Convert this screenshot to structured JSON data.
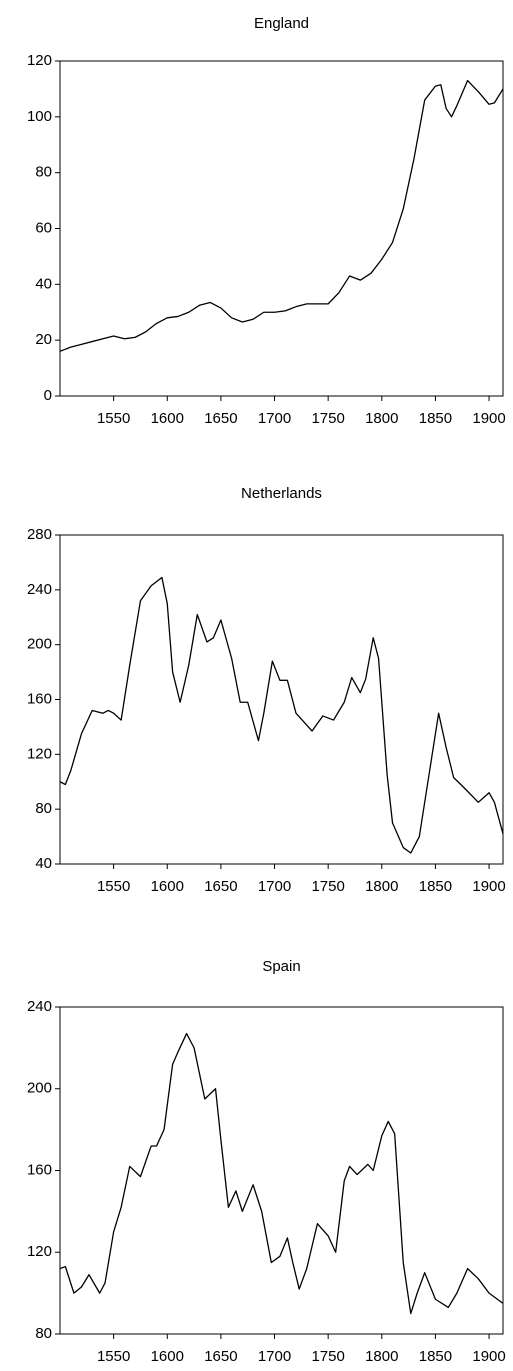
{
  "chart_data": [
    {
      "type": "line",
      "title": "England",
      "color": "#000000",
      "x": [
        1500,
        1510,
        1520,
        1530,
        1540,
        1550,
        1560,
        1570,
        1580,
        1590,
        1600,
        1610,
        1620,
        1630,
        1640,
        1650,
        1660,
        1670,
        1680,
        1690,
        1700,
        1710,
        1720,
        1730,
        1740,
        1750,
        1760,
        1770,
        1780,
        1790,
        1800,
        1810,
        1820,
        1830,
        1840,
        1850,
        1855,
        1860,
        1865,
        1870,
        1880,
        1890,
        1900,
        1905,
        1913
      ],
      "values": [
        16,
        17.5,
        18.5,
        19.5,
        20.5,
        21.5,
        20.5,
        21,
        23,
        26,
        28,
        28.5,
        30,
        32.5,
        33.5,
        31.5,
        28,
        26.5,
        27.5,
        30,
        30,
        30.5,
        32,
        33,
        33,
        33,
        37,
        43,
        41.5,
        44,
        49,
        55,
        67,
        85,
        106,
        111,
        111.5,
        103,
        100,
        104,
        113,
        109,
        104.5,
        105,
        110
      ],
      "xlim": [
        1500,
        1913
      ],
      "xticks": [
        1550,
        1600,
        1650,
        1700,
        1750,
        1800,
        1850,
        1900
      ],
      "ylim": [
        0,
        120
      ],
      "yticks": [
        0,
        20,
        40,
        60,
        80,
        100,
        120
      ]
    },
    {
      "type": "line",
      "title": "Netherlands",
      "color": "#000000",
      "x": [
        1500,
        1505,
        1510,
        1520,
        1530,
        1540,
        1545,
        1550,
        1557,
        1565,
        1575,
        1585,
        1595,
        1600,
        1605,
        1612,
        1620,
        1628,
        1637,
        1643,
        1650,
        1660,
        1668,
        1675,
        1685,
        1690,
        1698,
        1705,
        1712,
        1720,
        1735,
        1745,
        1755,
        1765,
        1772,
        1780,
        1785,
        1792,
        1797,
        1805,
        1810,
        1820,
        1827,
        1835,
        1845,
        1853,
        1860,
        1867,
        1875,
        1890,
        1900,
        1905,
        1913
      ],
      "values": [
        100,
        98,
        108,
        135,
        152,
        150,
        152,
        150,
        145,
        185,
        232,
        243,
        249,
        230,
        180,
        158,
        185,
        222,
        202,
        205,
        218,
        190,
        158,
        158,
        130,
        150,
        188,
        174,
        174,
        150,
        137,
        148,
        145,
        158,
        176,
        165,
        175,
        205,
        190,
        105,
        70,
        52,
        48,
        60,
        110,
        150,
        125,
        103,
        97,
        85,
        92,
        85,
        62
      ],
      "xlim": [
        1500,
        1913
      ],
      "xticks": [
        1550,
        1600,
        1650,
        1700,
        1750,
        1800,
        1850,
        1900
      ],
      "ylim": [
        40,
        280
      ],
      "yticks": [
        40,
        80,
        120,
        160,
        200,
        240,
        280
      ]
    },
    {
      "type": "line",
      "title": "Spain",
      "color": "#000000",
      "x": [
        1500,
        1505,
        1513,
        1520,
        1527,
        1537,
        1542,
        1550,
        1557,
        1565,
        1575,
        1585,
        1590,
        1597,
        1605,
        1610,
        1618,
        1625,
        1635,
        1645,
        1650,
        1657,
        1664,
        1670,
        1680,
        1688,
        1697,
        1705,
        1712,
        1717,
        1723,
        1730,
        1740,
        1750,
        1757,
        1765,
        1770,
        1777,
        1787,
        1792,
        1800,
        1806,
        1812,
        1820,
        1827,
        1833,
        1840,
        1850,
        1862,
        1870,
        1880,
        1890,
        1900,
        1913
      ],
      "values": [
        112,
        113,
        100,
        103,
        109,
        100,
        105,
        130,
        142,
        162,
        157,
        172,
        172,
        180,
        212,
        218,
        227,
        220,
        195,
        200,
        175,
        142,
        150,
        140,
        153,
        140,
        115,
        118,
        127,
        115,
        102,
        112,
        134,
        128,
        120,
        155,
        162,
        158,
        163,
        160,
        177,
        184,
        178,
        115,
        90,
        100,
        110,
        97,
        93,
        100,
        112,
        107,
        100,
        95
      ],
      "xlim": [
        1500,
        1913
      ],
      "xticks": [
        1550,
        1600,
        1650,
        1700,
        1750,
        1800,
        1850,
        1900
      ],
      "ylim": [
        80,
        240
      ],
      "yticks": [
        80,
        120,
        160,
        200,
        240
      ]
    }
  ]
}
